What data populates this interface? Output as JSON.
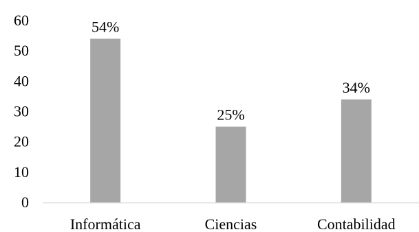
{
  "chart_data": {
    "type": "bar",
    "categories": [
      "Informática",
      "Ciencias",
      "Contabilidad"
    ],
    "values": [
      54,
      25,
      34
    ],
    "data_labels": [
      "54%",
      "25%",
      "34%"
    ],
    "ylim": [
      0,
      60
    ],
    "yticks": [
      0,
      10,
      20,
      30,
      40,
      50,
      60
    ],
    "ytick_labels": [
      "0",
      "10",
      "20",
      "30",
      "40",
      "50",
      "60"
    ],
    "grid": false,
    "legend": "none",
    "bar_color": "#a6a6a6",
    "axis_color": "#d9d9d9"
  }
}
